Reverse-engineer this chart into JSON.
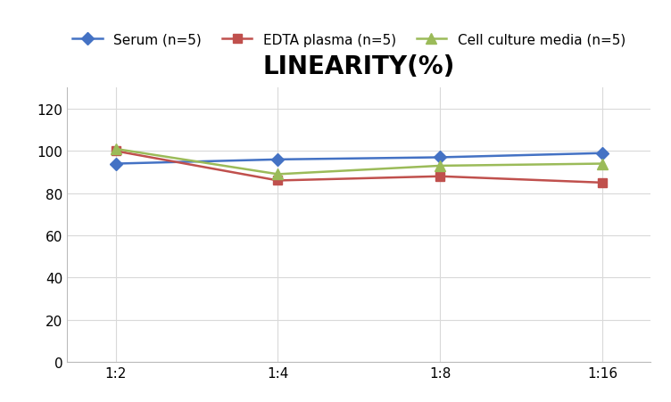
{
  "title": "LINEARITY(%)",
  "x_labels": [
    "1:2",
    "1:4",
    "1:8",
    "1:16"
  ],
  "x_positions": [
    0,
    1,
    2,
    3
  ],
  "series": [
    {
      "label": "Serum (n=5)",
      "values": [
        94,
        96,
        97,
        99
      ],
      "color": "#4472C4",
      "marker": "D",
      "marker_size": 7,
      "linewidth": 1.8
    },
    {
      "label": "EDTA plasma (n=5)",
      "values": [
        100,
        86,
        88,
        85
      ],
      "color": "#C0504D",
      "marker": "s",
      "marker_size": 7,
      "linewidth": 1.8
    },
    {
      "label": "Cell culture media (n=5)",
      "values": [
        101,
        89,
        93,
        94
      ],
      "color": "#9BBB59",
      "marker": "^",
      "marker_size": 8,
      "linewidth": 1.8
    }
  ],
  "ylim": [
    0,
    130
  ],
  "yticks": [
    0,
    20,
    40,
    60,
    80,
    100,
    120
  ],
  "grid_color": "#D9D9D9",
  "background_color": "#FFFFFF",
  "title_fontsize": 20,
  "title_fontweight": "bold",
  "legend_fontsize": 11,
  "tick_fontsize": 11
}
